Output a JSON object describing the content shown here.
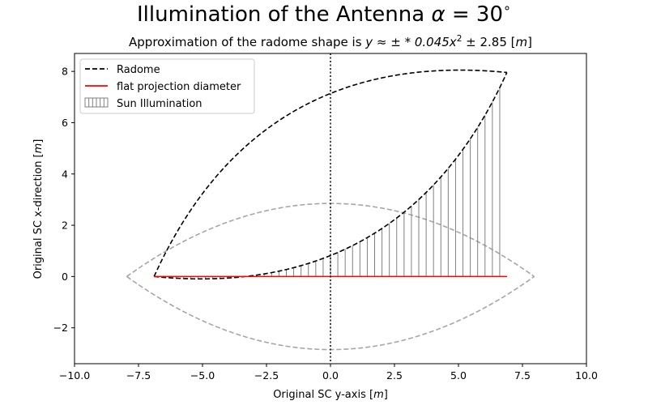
{
  "chart_data": {
    "type": "line",
    "title": "Illumination of the Antenna α = 30°",
    "title_main": "Illumination of the Antenna ",
    "title_alpha": "α",
    "title_eq": " = 30",
    "title_deg": "∘",
    "subtitle": "Approximation of the radome shape is y ≈ ± * 0.045x² ± 2.85 [m]",
    "subtitle_prefix": "Approximation of the radome shape is ",
    "subtitle_math": "y ≈ ± * 0.045x",
    "subtitle_sup": "2",
    "subtitle_tail": " ± 2.85 [",
    "subtitle_unit": "m",
    "subtitle_close": "]",
    "xlabel_text": "Original SC y-axis [",
    "xlabel_unit": "m",
    "xlabel_close": "]",
    "ylabel_text": "Original SC x-direction [",
    "ylabel_unit": "m",
    "ylabel_close": "]",
    "xlim": [
      -10,
      10
    ],
    "ylim": [
      -3.4,
      8.7
    ],
    "x_ticks": [
      -10,
      -7.5,
      -5,
      -2.5,
      0,
      2.5,
      5,
      7.5,
      10
    ],
    "x_tick_labels": [
      "−10.0",
      "−7.5",
      "−5.0",
      "−2.5",
      "0.0",
      "2.5",
      "5.0",
      "7.5",
      "10.0"
    ],
    "y_ticks": [
      -2,
      0,
      2,
      4,
      6,
      8
    ],
    "y_tick_labels": [
      "−2",
      "0",
      "2",
      "4",
      "6",
      "8"
    ],
    "grid": false,
    "legend_placement": "top-left",
    "legend": [
      {
        "label": "Radome",
        "style": "dashed-line",
        "color": "#000000"
      },
      {
        "label": "flat projection diameter",
        "style": "solid-line",
        "color": "#ff0000"
      },
      {
        "label": "Sun Illumination",
        "style": "hatched-patch",
        "color": "#808080"
      }
    ],
    "colors": {
      "radome": "#000000",
      "unrotated_radome": "#a6a6a6",
      "projection": "#ff0000",
      "illumination": "#808080",
      "centerline": "#000000"
    },
    "radome_params": {
      "a": 0.045,
      "b": 2.85,
      "rotation_deg": 30
    },
    "unrotated_radome_extent": [
      -7.96,
      7.96
    ],
    "projection_line": {
      "x": [
        -6.9,
        6.9
      ],
      "y": [
        0,
        0
      ]
    },
    "centerline_x": 0,
    "illumination_x_range": [
      -6.9,
      6.9
    ],
    "illumination_line_count": 48
  }
}
